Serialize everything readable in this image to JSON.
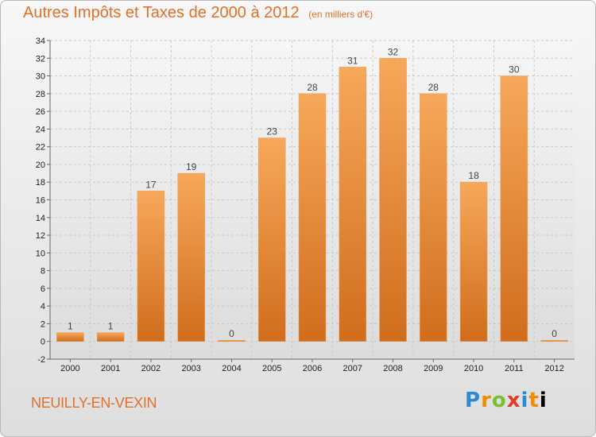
{
  "header": {
    "title": "Autres Impôts et Taxes de 2000 à 2012",
    "unit": "(en milliers d'€)"
  },
  "footer": {
    "commune": "NEUILLY-EN-VEXIN",
    "logo_letters": [
      "P",
      "r",
      "o",
      "x",
      "i",
      "t",
      "i"
    ]
  },
  "chart_data": {
    "type": "bar",
    "categories": [
      "2000",
      "2001",
      "2002",
      "2003",
      "2004",
      "2005",
      "2006",
      "2007",
      "2008",
      "2009",
      "2010",
      "2011",
      "2012"
    ],
    "values": [
      1,
      1,
      17,
      19,
      0,
      23,
      28,
      31,
      32,
      28,
      18,
      30,
      0
    ],
    "ylim": [
      -2,
      34
    ],
    "yticks": [
      -2,
      0,
      2,
      4,
      6,
      8,
      10,
      12,
      14,
      16,
      18,
      20,
      22,
      24,
      26,
      28,
      30,
      32,
      34
    ],
    "grid": true,
    "bar_color": "#f0913a",
    "bar_color_dark": "#d8711c",
    "title_color": "#e0702a"
  }
}
